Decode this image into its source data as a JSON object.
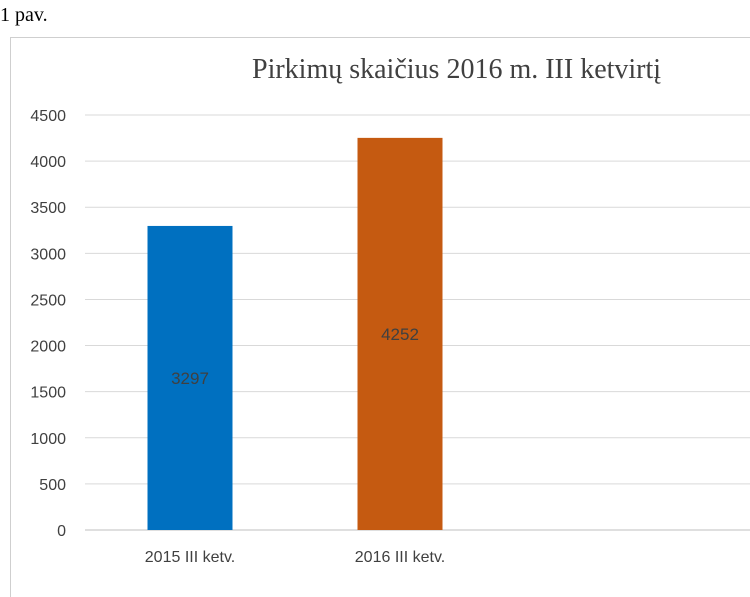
{
  "caption": "1 pav.",
  "chart_data": {
    "type": "bar",
    "title": "Pirkimų skaičius 2016 m. III ketvirtį",
    "categories": [
      "2015 III ketv.",
      "2016 III ketv."
    ],
    "values": [
      3297,
      4252
    ],
    "bar_colors": [
      "#0070c0",
      "#c55a11"
    ],
    "ylim": [
      0,
      4500
    ],
    "yticks": [
      0,
      500,
      1000,
      1500,
      2000,
      2500,
      3000,
      3500,
      4000,
      4500
    ],
    "grid": true,
    "legend": "none",
    "xlabel": "",
    "ylabel": ""
  }
}
